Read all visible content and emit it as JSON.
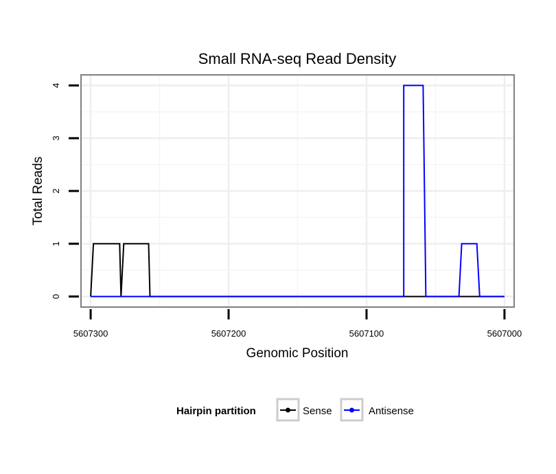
{
  "chart_data": {
    "type": "line",
    "title": "Small RNA-seq Read Density",
    "xlabel": "Genomic Position",
    "ylabel": "Total Reads",
    "x_reversed": true,
    "xlim": [
      5607307,
      5606993
    ],
    "ylim": [
      -0.2,
      4.2
    ],
    "xticks": [
      5607300,
      5607200,
      5607100,
      5607000
    ],
    "xtick_labels": [
      "5607300",
      "5607200",
      "5607100",
      "5607000"
    ],
    "yticks": [
      0,
      1,
      2,
      3,
      4
    ],
    "ytick_labels": [
      "0",
      "1",
      "2",
      "3",
      "4"
    ],
    "grid": true,
    "legend": {
      "title": "Hairpin partition",
      "position": "bottom"
    },
    "series": [
      {
        "name": "Sense",
        "color": "#000000",
        "x": [
          5607300,
          5607298,
          5607279,
          5607278,
          5607276,
          5607258,
          5607257,
          5607000
        ],
        "y": [
          0,
          1,
          1,
          0,
          1,
          1,
          0,
          0
        ]
      },
      {
        "name": "Antisense",
        "color": "#0000ff",
        "x": [
          5607300,
          5607076,
          5607073,
          5607073,
          5607059,
          5607057,
          5607033,
          5607031,
          5607020,
          5607018,
          5607000
        ],
        "y": [
          0,
          0,
          0,
          4,
          4,
          0,
          0,
          1,
          1,
          0,
          0
        ]
      }
    ]
  }
}
